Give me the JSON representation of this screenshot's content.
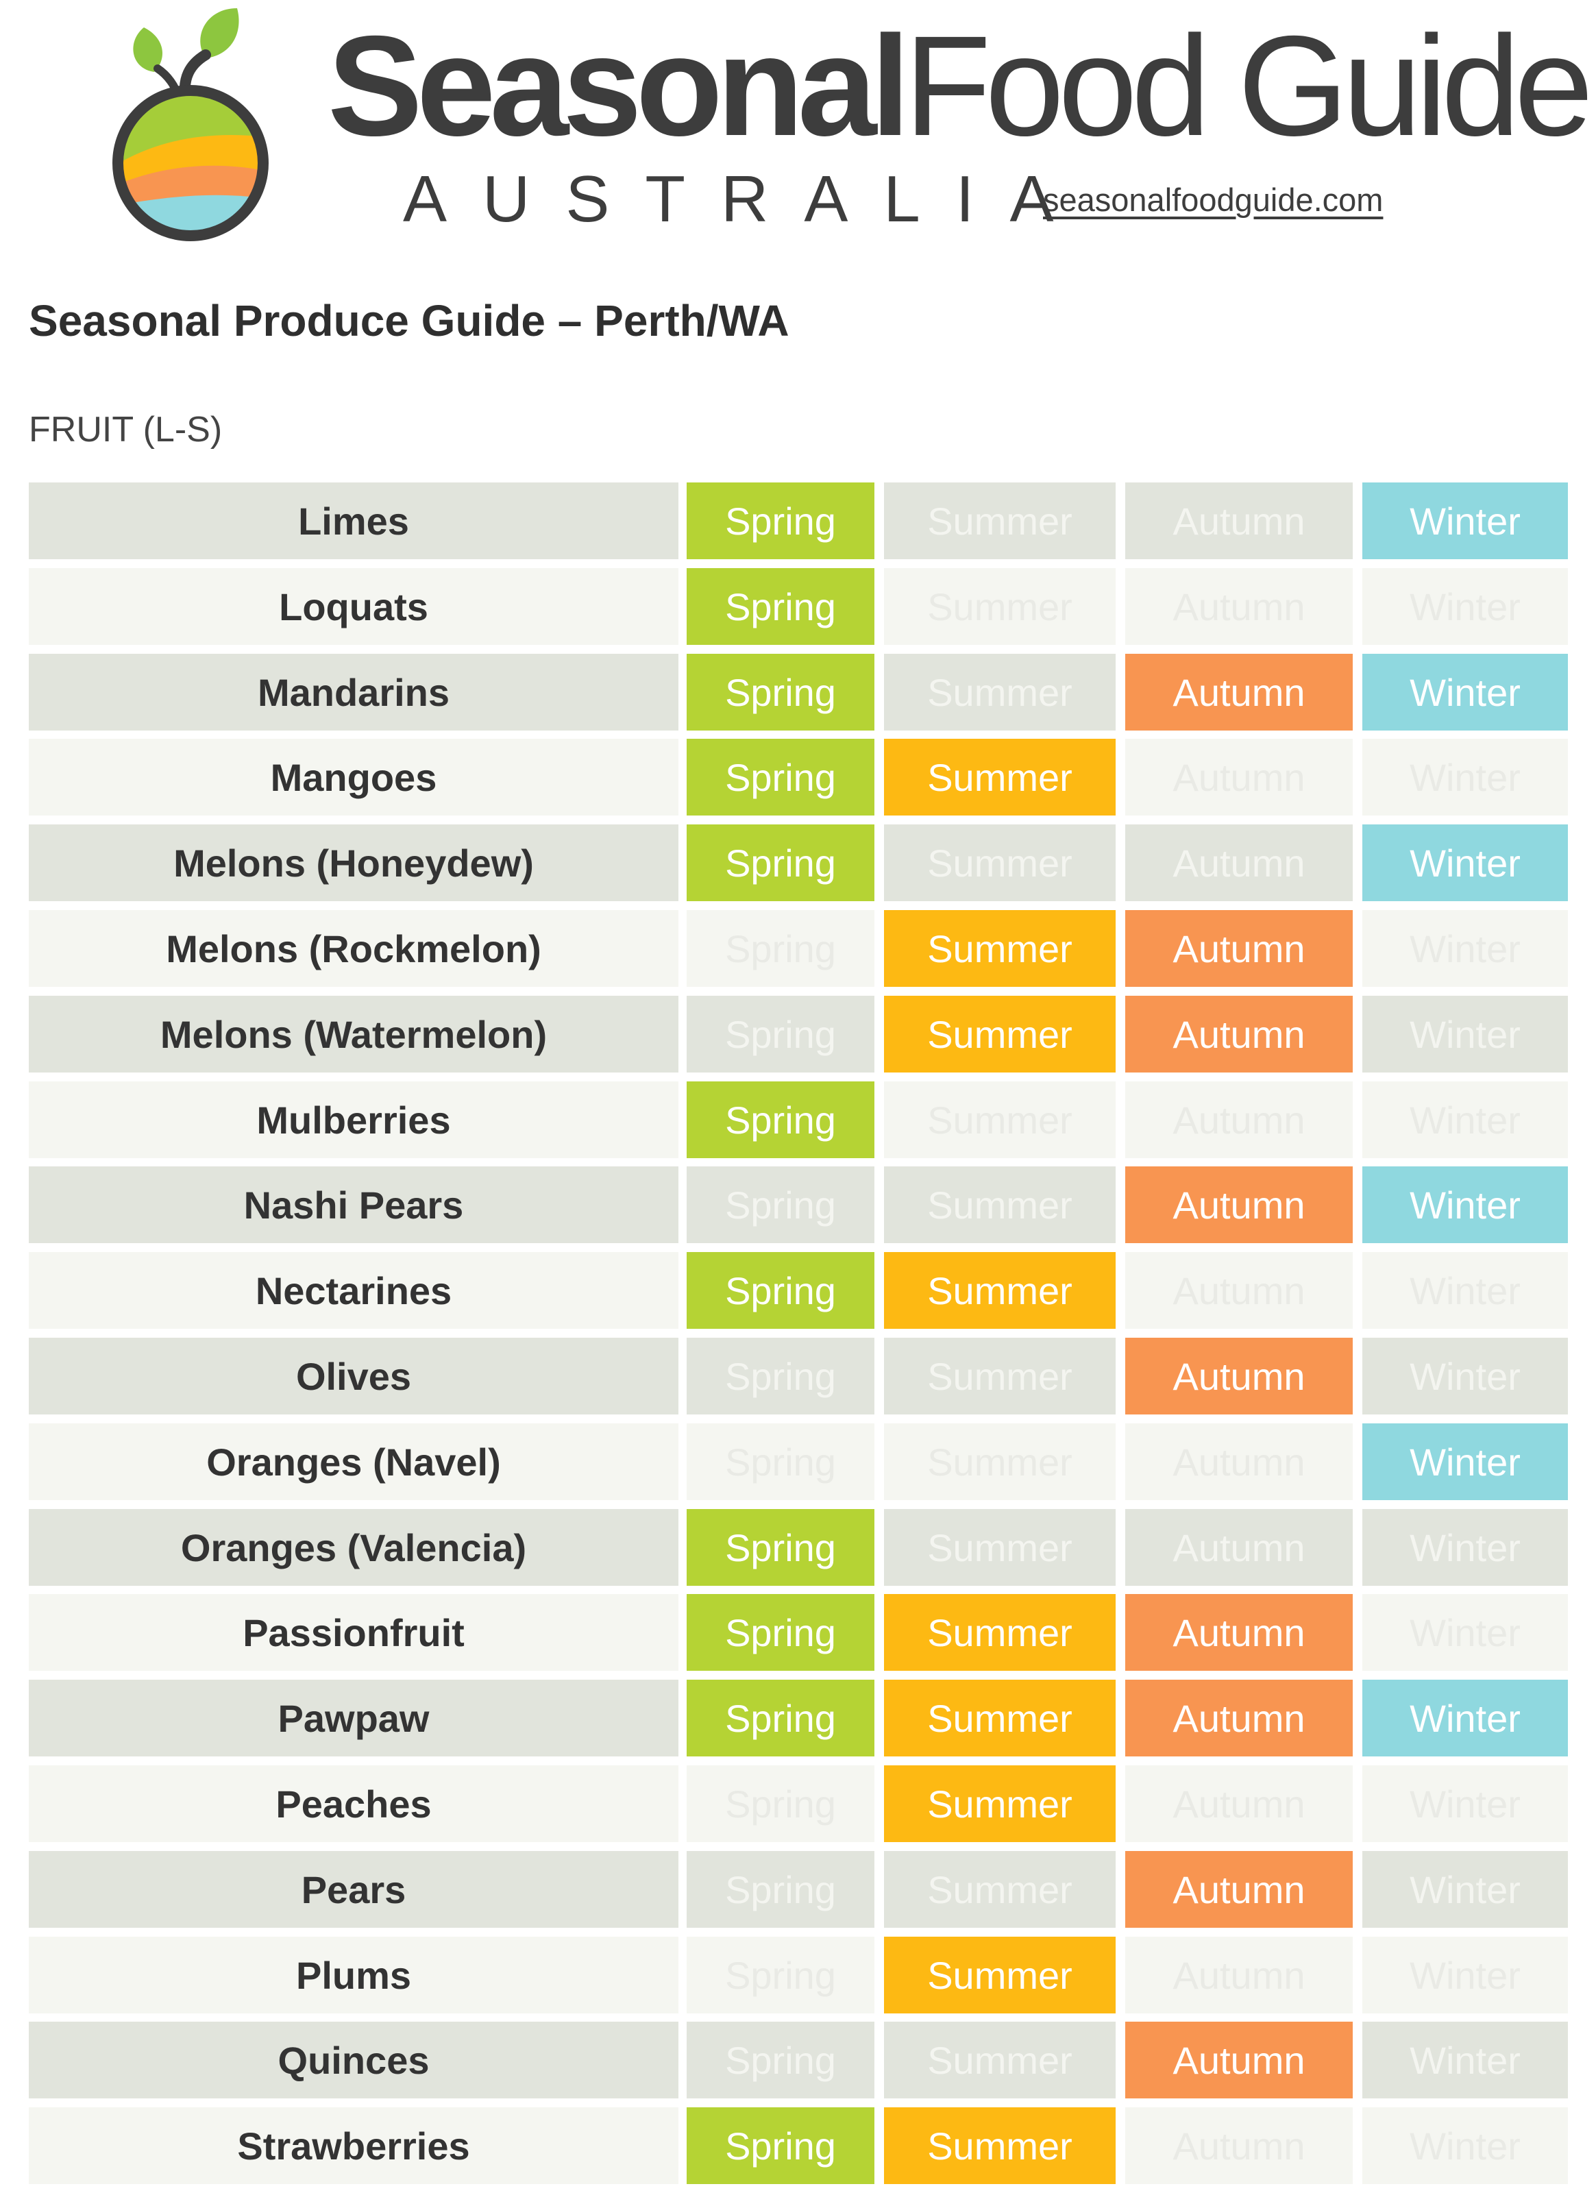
{
  "header": {
    "brand_bold": "Seasonal",
    "brand_light": "Food Guide",
    "country": "AUSTRALIA",
    "site_link": "seasonalfoodguide.com",
    "logo_icon": "fruit-landscape-logo-icon"
  },
  "title": "Seasonal Produce Guide – Perth/WA",
  "section_label": "FRUIT (L-S)",
  "colors": {
    "spring": "#b5d334",
    "summer": "#fdb913",
    "autumn": "#f89551",
    "winter": "#8fd8df",
    "row_dark": "#e1e4dc",
    "row_light": "#f5f6f1"
  },
  "season_labels": [
    "Spring",
    "Summer",
    "Autumn",
    "Winter"
  ],
  "rows": [
    {
      "name": "Limes",
      "seasons": [
        true,
        false,
        false,
        true
      ]
    },
    {
      "name": "Loquats",
      "seasons": [
        true,
        false,
        false,
        false
      ]
    },
    {
      "name": "Mandarins",
      "seasons": [
        true,
        false,
        true,
        true
      ]
    },
    {
      "name": "Mangoes",
      "seasons": [
        true,
        true,
        false,
        false
      ]
    },
    {
      "name": "Melons (Honeydew)",
      "seasons": [
        true,
        false,
        false,
        true
      ]
    },
    {
      "name": "Melons (Rockmelon)",
      "seasons": [
        false,
        true,
        true,
        false
      ]
    },
    {
      "name": "Melons (Watermelon)",
      "seasons": [
        false,
        true,
        true,
        false
      ]
    },
    {
      "name": "Mulberries",
      "seasons": [
        true,
        false,
        false,
        false
      ]
    },
    {
      "name": "Nashi Pears",
      "seasons": [
        false,
        false,
        true,
        true
      ]
    },
    {
      "name": "Nectarines",
      "seasons": [
        true,
        true,
        false,
        false
      ]
    },
    {
      "name": "Olives",
      "seasons": [
        false,
        false,
        true,
        false
      ]
    },
    {
      "name": "Oranges (Navel)",
      "seasons": [
        false,
        false,
        false,
        true
      ]
    },
    {
      "name": "Oranges (Valencia)",
      "seasons": [
        true,
        false,
        false,
        false
      ]
    },
    {
      "name": "Passionfruit",
      "seasons": [
        true,
        true,
        true,
        false
      ]
    },
    {
      "name": "Pawpaw",
      "seasons": [
        true,
        true,
        true,
        true
      ]
    },
    {
      "name": "Peaches",
      "seasons": [
        false,
        true,
        false,
        false
      ]
    },
    {
      "name": "Pears",
      "seasons": [
        false,
        false,
        true,
        false
      ]
    },
    {
      "name": "Plums",
      "seasons": [
        false,
        true,
        false,
        false
      ]
    },
    {
      "name": "Quinces",
      "seasons": [
        false,
        false,
        true,
        false
      ]
    },
    {
      "name": "Strawberries",
      "seasons": [
        true,
        true,
        false,
        false
      ]
    }
  ]
}
